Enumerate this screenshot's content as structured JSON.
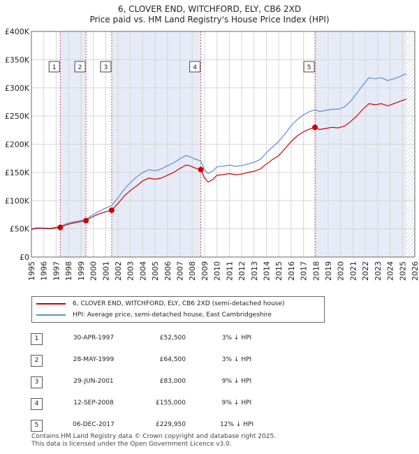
{
  "title": {
    "line1": "6, CLOVER END, WITCHFORD, ELY, CB6 2XD",
    "line2": "Price paid vs. HM Land Registry's House Price Index (HPI)"
  },
  "legend": {
    "property": "6, CLOVER END, WITCHFORD, ELY, CB6 2XD (semi-detached house)",
    "hpi": "HPI: Average price, semi-detached house, East Cambridgeshire"
  },
  "transactions": [
    {
      "num": "1",
      "date": "30-APR-1997",
      "price": "£52,500",
      "hpi": "3% ↓ HPI"
    },
    {
      "num": "2",
      "date": "28-MAY-1999",
      "price": "£64,500",
      "hpi": "3% ↓ HPI"
    },
    {
      "num": "3",
      "date": "29-JUN-2001",
      "price": "£83,000",
      "hpi": "9% ↓ HPI"
    },
    {
      "num": "4",
      "date": "12-SEP-2008",
      "price": "£155,000",
      "hpi": "9% ↓ HPI"
    },
    {
      "num": "5",
      "date": "06-DEC-2017",
      "price": "£229,950",
      "hpi": "12% ↓ HPI"
    }
  ],
  "footer": {
    "line1": "Contains HM Land Registry data © Crown copyright and database right 2025.",
    "line2": "This data is licensed under the Open Government Licence v3.0."
  },
  "chart_data": {
    "type": "line",
    "xlim": [
      1995,
      2026
    ],
    "ylim": [
      0,
      400000
    ],
    "y_ticks": [
      0,
      50000,
      100000,
      150000,
      200000,
      250000,
      300000,
      350000,
      400000
    ],
    "y_tick_labels": [
      "£0",
      "£50K",
      "£100K",
      "£150K",
      "£200K",
      "£250K",
      "£300K",
      "£350K",
      "£400K"
    ],
    "x_ticks": [
      1995,
      1996,
      1997,
      1998,
      1999,
      2000,
      2001,
      2002,
      2003,
      2004,
      2005,
      2006,
      2007,
      2008,
      2009,
      2010,
      2011,
      2012,
      2013,
      2014,
      2015,
      2016,
      2017,
      2018,
      2019,
      2020,
      2021,
      2022,
      2023,
      2024,
      2025,
      2026
    ],
    "x_tick_labels": [
      "1995",
      "1996",
      "1997",
      "1998",
      "1999",
      "2000",
      "2001",
      "2002",
      "2003",
      "2004",
      "2005",
      "2006",
      "2007",
      "2008",
      "2009",
      "2010",
      "2011",
      "2012",
      "2013",
      "2014",
      "2015",
      "2016",
      "2017",
      "2018",
      "2019",
      "2020",
      "2021",
      "2022",
      "2023",
      "2024",
      "2025",
      "2026"
    ],
    "shaded_spans": [
      [
        1997.33,
        1999.41
      ],
      [
        2001.49,
        2008.7
      ],
      [
        2017.93,
        2025.3
      ]
    ],
    "hatch_from": 2025.3,
    "marker_color": "#cc0000",
    "series": [
      {
        "name": "6, CLOVER END, WITCHFORD, ELY, CB6 2XD (semi-detached house)",
        "color": "#cc0000",
        "x": [
          1995.0,
          1995.5,
          1996.0,
          1996.5,
          1997.0,
          1997.33,
          1997.8,
          1998.3,
          1998.8,
          1999.41,
          1999.8,
          2000.3,
          2000.8,
          2001.49,
          2002.0,
          2002.5,
          2003.0,
          2003.5,
          2004.0,
          2004.5,
          2005.0,
          2005.5,
          2006.0,
          2006.5,
          2007.0,
          2007.5,
          2007.8,
          2008.2,
          2008.7,
          2009.0,
          2009.3,
          2009.7,
          2010.0,
          2010.5,
          2011.0,
          2011.5,
          2012.0,
          2012.5,
          2013.0,
          2013.5,
          2014.0,
          2014.5,
          2015.0,
          2015.5,
          2016.0,
          2016.5,
          2017.0,
          2017.5,
          2017.93,
          2018.3,
          2018.8,
          2019.3,
          2019.8,
          2020.3,
          2020.8,
          2021.3,
          2021.8,
          2022.3,
          2022.8,
          2023.3,
          2023.8,
          2024.3,
          2024.8,
          2025.3
        ],
        "y": [
          49000,
          51000,
          50500,
          50000,
          51500,
          52500,
          57000,
          60000,
          62000,
          64500,
          70000,
          75000,
          79000,
          83000,
          95000,
          108000,
          118000,
          126000,
          135000,
          140000,
          138000,
          140000,
          145000,
          150000,
          157000,
          163000,
          162000,
          158000,
          155000,
          140000,
          133000,
          138000,
          145000,
          146000,
          148000,
          146000,
          147000,
          150000,
          152000,
          156000,
          165000,
          173000,
          180000,
          192000,
          205000,
          215000,
          222000,
          227000,
          229950,
          226000,
          228000,
          230000,
          229000,
          232000,
          240000,
          250000,
          262000,
          272000,
          270000,
          272000,
          268000,
          272000,
          276000,
          280000
        ]
      },
      {
        "name": "HPI: Average price, semi-detached house, East Cambridgeshire",
        "color": "#5b8fd0",
        "x": [
          1995.0,
          1995.5,
          1996.0,
          1996.5,
          1997.0,
          1997.33,
          1997.8,
          1998.3,
          1998.8,
          1999.41,
          1999.8,
          2000.3,
          2000.8,
          2001.49,
          2002.0,
          2002.5,
          2003.0,
          2003.5,
          2004.0,
          2004.5,
          2005.0,
          2005.5,
          2006.0,
          2006.5,
          2007.0,
          2007.5,
          2007.8,
          2008.2,
          2008.7,
          2009.0,
          2009.3,
          2009.7,
          2010.0,
          2010.5,
          2011.0,
          2011.5,
          2012.0,
          2012.5,
          2013.0,
          2013.5,
          2014.0,
          2014.5,
          2015.0,
          2015.5,
          2016.0,
          2016.5,
          2017.0,
          2017.5,
          2017.93,
          2018.3,
          2018.8,
          2019.3,
          2019.8,
          2020.3,
          2020.8,
          2021.3,
          2021.8,
          2022.3,
          2022.8,
          2023.3,
          2023.8,
          2024.3,
          2024.8,
          2025.3
        ],
        "y": [
          50000,
          52000,
          51500,
          51000,
          53000,
          54100,
          58800,
          61800,
          64000,
          66500,
          73000,
          79000,
          85000,
          91200,
          105000,
          120000,
          132000,
          142000,
          150000,
          155000,
          153000,
          156000,
          162000,
          167000,
          174000,
          180000,
          178000,
          174000,
          170300,
          155000,
          148000,
          153000,
          160000,
          161000,
          163000,
          161000,
          162000,
          165000,
          168000,
          173000,
          185000,
          195000,
          205000,
          218000,
          233000,
          244000,
          252000,
          258000,
          261000,
          258000,
          260000,
          262000,
          262000,
          266000,
          276000,
          290000,
          305000,
          318000,
          316000,
          318000,
          313000,
          316000,
          320000,
          325000
        ]
      }
    ],
    "sales": [
      {
        "label": "1",
        "x": 1997.33,
        "y": 52500
      },
      {
        "label": "2",
        "x": 1999.41,
        "y": 64500
      },
      {
        "label": "3",
        "x": 2001.49,
        "y": 83000
      },
      {
        "label": "4",
        "x": 2008.7,
        "y": 155000
      },
      {
        "label": "5",
        "x": 2017.93,
        "y": 229950
      }
    ]
  }
}
